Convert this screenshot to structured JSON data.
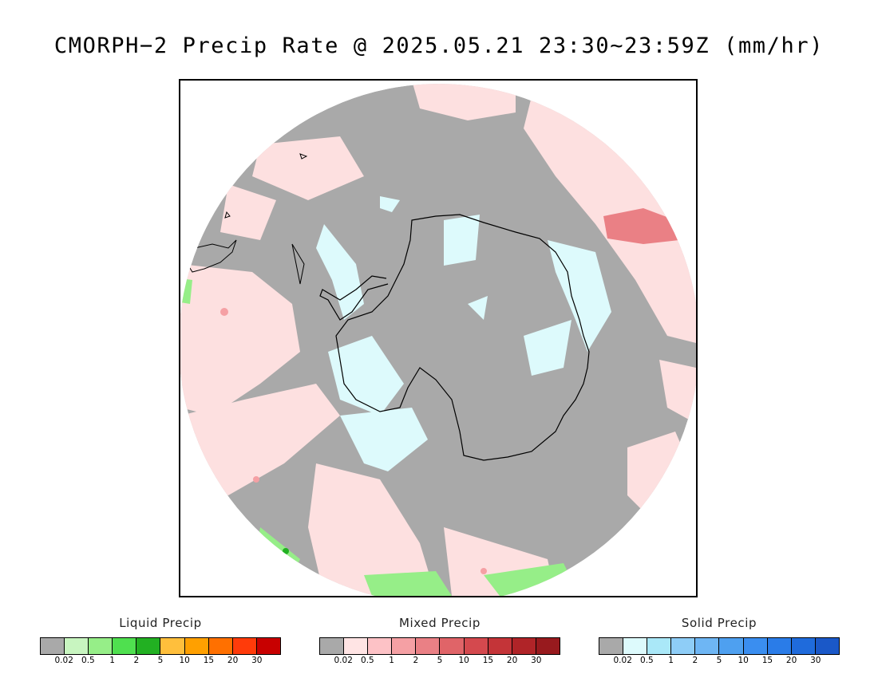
{
  "title": "CMORPH−2 Precip Rate @ 2025.05.21 23:30~23:59Z (mm/hr)",
  "map": {
    "projection": "south-polar-stereographic",
    "background_color": "#a9a9a9",
    "coastline_color": "#000000"
  },
  "legends": [
    {
      "title": "Liquid Precip",
      "colors": [
        "#a9a9a9",
        "#c8f5c0",
        "#96ee88",
        "#4fe04f",
        "#22b022",
        "#ffbf3c",
        "#ffa000",
        "#ff7000",
        "#ff3b0a",
        "#c80000"
      ],
      "ticks": [
        "0.02",
        "0.5",
        "1",
        "2",
        "5",
        "10",
        "15",
        "20",
        "30"
      ]
    },
    {
      "title": "Mixed Precip",
      "colors": [
        "#a9a9a9",
        "#ffe4e4",
        "#fdc2c6",
        "#f5a0a4",
        "#ea8085",
        "#e06468",
        "#d4494e",
        "#c43438",
        "#b02428",
        "#981a1e"
      ],
      "ticks": [
        "0.02",
        "0.5",
        "1",
        "2",
        "5",
        "10",
        "15",
        "20",
        "30"
      ]
    },
    {
      "title": "Solid Precip",
      "colors": [
        "#a9a9a9",
        "#ddfafc",
        "#aae8f8",
        "#8ecdf7",
        "#6eb6f4",
        "#4ea0f0",
        "#3a8ef0",
        "#2a7ce8",
        "#1f6bdc",
        "#1a58c8"
      ],
      "ticks": [
        "0.02",
        "0.5",
        "1",
        "2",
        "5",
        "10",
        "15",
        "20",
        "30"
      ]
    }
  ]
}
